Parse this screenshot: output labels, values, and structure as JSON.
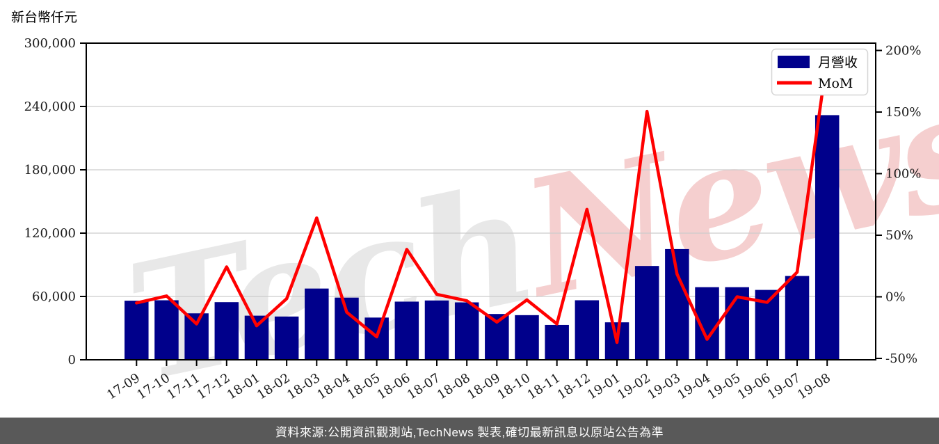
{
  "header": {
    "unit_label": "新台幣仟元"
  },
  "chart_data": {
    "type": "bar+line combo",
    "categories": [
      "17-09",
      "17-10",
      "17-11",
      "17-12",
      "18-01",
      "18-02",
      "18-03",
      "18-04",
      "18-05",
      "18-06",
      "18-07",
      "18-08",
      "18-09",
      "18-10",
      "18-11",
      "18-12",
      "19-01",
      "19-02",
      "19-03",
      "19-04",
      "19-05",
      "19-06",
      "19-07",
      "19-08"
    ],
    "series": [
      {
        "name": "月營收",
        "type": "bar",
        "axis": "left",
        "color": "#00008B",
        "values": [
          56000,
          56400,
          44000,
          54600,
          41800,
          41000,
          67500,
          58900,
          40000,
          55100,
          56200,
          54400,
          43400,
          42300,
          33000,
          56400,
          35500,
          88900,
          104900,
          68800,
          68800,
          66200,
          79400,
          231800
        ]
      },
      {
        "name": "MoM",
        "type": "line",
        "axis": "right",
        "color": "#FF0000",
        "values": [
          -5.0,
          0.7,
          -22.0,
          24.3,
          -23.5,
          -1.5,
          64.0,
          -12.5,
          -32.5,
          38.5,
          2.0,
          -3.2,
          -20.5,
          -2.5,
          -22.0,
          71.0,
          -37.0,
          150.5,
          18.5,
          -34.5,
          0.0,
          -4.5,
          20.0,
          194.0
        ]
      }
    ],
    "left_axis": {
      "label": "新台幣仟元",
      "tick_values": [
        0,
        60000,
        120000,
        180000,
        240000,
        300000
      ],
      "tick_labels": [
        "0",
        "60,000",
        "120,000",
        "180,000",
        "240,000",
        "300,000"
      ],
      "range": [
        0,
        300000
      ]
    },
    "right_axis": {
      "tick_values": [
        -50,
        0,
        50,
        100,
        150,
        200
      ],
      "tick_labels": [
        "-50%",
        "0%",
        "50%",
        "100%",
        "150%",
        "200%"
      ],
      "range": [
        -50,
        200
      ],
      "unit": "%"
    },
    "grid": "horizontal",
    "legend_position": "upper-right"
  },
  "watermark": {
    "part1": "Tech",
    "part2": "News"
  },
  "footer": {
    "text": "資料來源:公開資訊觀測站,TechNews 製表,確切最新訊息以原站公告為準",
    "bg_color": "#595959",
    "text_color": "#ffffff"
  }
}
